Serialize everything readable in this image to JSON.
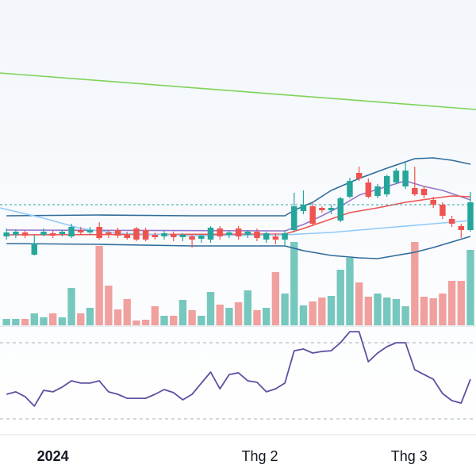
{
  "chart_data": {
    "type": "candlestick",
    "xlim": [
      -0.7,
      50.6
    ],
    "xticks": [
      {
        "value": 5,
        "label": "2024"
      },
      {
        "value": 27.3,
        "label": "Thg 2"
      },
      {
        "value": 43.4,
        "label": "Thg 3"
      }
    ],
    "ylim": [
      0,
      41
    ],
    "up_color": "#26a69a",
    "down_color": "#ef5350",
    "open": [
      11.2,
      11.4,
      11.7,
      8.9,
      11.4,
      11.6,
      11.5,
      11.2,
      12.0,
      11.7,
      12.4,
      11.7,
      12.0,
      11.4,
      12.2,
      12.0,
      11.4,
      11.2,
      11.5,
      11.1,
      11.2,
      10.9,
      10.8,
      12.2,
      11.4,
      12.2,
      11.4,
      11.8,
      10.8,
      11.2,
      10.8,
      12.0,
      14.4,
      15.0,
      14.8,
      14.5,
      13.2,
      16.2,
      19.2,
      18.0,
      16.3,
      16.5,
      18.0,
      17.5,
      17.3,
      17.2,
      15.8,
      15.2,
      13.4,
      12.5,
      12.0
    ],
    "high": [
      12.2,
      12.1,
      12.0,
      11.4,
      12.2,
      11.9,
      12.0,
      12.8,
      12.4,
      12.4,
      13.0,
      12.0,
      12.3,
      11.8,
      12.4,
      12.3,
      11.7,
      11.9,
      11.8,
      11.6,
      11.4,
      11.5,
      12.5,
      12.5,
      11.9,
      12.5,
      12.0,
      12.2,
      11.8,
      11.6,
      12.0,
      16.7,
      17.0,
      15.5,
      15.0,
      15.2,
      16.2,
      18.6,
      20.0,
      18.5,
      17.8,
      19.0,
      19.8,
      20.5,
      20.0,
      17.6,
      16.2,
      15.5,
      13.8,
      12.8,
      16.8
    ],
    "low": [
      10.8,
      11.0,
      11.0,
      8.8,
      11.2,
      11.0,
      11.2,
      11.0,
      11.4,
      11.4,
      10.8,
      11.0,
      11.0,
      10.8,
      10.6,
      10.6,
      10.8,
      10.8,
      10.6,
      10.6,
      9.8,
      10.4,
      10.4,
      10.8,
      11.0,
      10.8,
      11.0,
      10.6,
      10.4,
      10.2,
      10.0,
      11.7,
      14.0,
      12.5,
      14.2,
      14.0,
      13.0,
      16.0,
      18.2,
      16.0,
      16.0,
      16.2,
      17.8,
      17.2,
      16.3,
      16.0,
      14.8,
      13.4,
      12.4,
      11.0,
      11.8
    ],
    "close": [
      11.7,
      11.8,
      11.3,
      10.3,
      11.8,
      11.3,
      11.8,
      12.4,
      11.7,
      12.0,
      11.0,
      11.4,
      11.3,
      11.0,
      10.8,
      10.8,
      11.1,
      11.6,
      11.1,
      11.4,
      10.8,
      11.3,
      12.3,
      11.2,
      11.7,
      11.2,
      11.8,
      11.0,
      11.6,
      10.8,
      11.6,
      15.0,
      15.2,
      12.8,
      14.5,
      14.8,
      16.0,
      18.2,
      18.5,
      16.2,
      17.5,
      18.8,
      19.5,
      19.5,
      16.5,
      16.4,
      15.2,
      13.8,
      12.8,
      12.0,
      15.5
    ],
    "price_line": 15.2,
    "price_line_color": "#26a69a",
    "overlays": [
      {
        "color": "#7ed35a",
        "x": [
          -0.7,
          50.6
        ],
        "values": [
          31.8,
          27.2
        ]
      },
      {
        "color": "#2f6b9a",
        "x": [
          0,
          10,
          20,
          30,
          31,
          33,
          35,
          38,
          41,
          44,
          46,
          48,
          50
        ],
        "values": [
          13.8,
          13.9,
          13.8,
          13.8,
          14.5,
          15.5,
          17.0,
          18.5,
          19.8,
          21.0,
          21.1,
          20.8,
          20.3
        ]
      },
      {
        "color": "#2f6b9a",
        "x": [
          0,
          10,
          20,
          30,
          32,
          35,
          38,
          40,
          42,
          44,
          46,
          48,
          50
        ],
        "values": [
          10.3,
          10.2,
          10.0,
          10.0,
          9.4,
          8.8,
          8.5,
          8.4,
          8.8,
          9.2,
          9.8,
          10.5,
          11.2
        ]
      },
      {
        "color": "#9575cd",
        "x": [
          0,
          30,
          32,
          34,
          36,
          38,
          41,
          43,
          45,
          47,
          49,
          50
        ],
        "values": [
          12.0,
          11.9,
          12.7,
          13.8,
          15.0,
          16.4,
          17.5,
          18.2,
          17.5,
          17.0,
          16.2,
          15.8
        ]
      },
      {
        "color": "#ef5350",
        "x": [
          0,
          30,
          32,
          34,
          37,
          40,
          43,
          46,
          48,
          50
        ],
        "values": [
          11.4,
          11.5,
          12.2,
          13.0,
          14.2,
          14.8,
          15.5,
          16.0,
          16.3,
          16.2
        ]
      },
      {
        "color": "#90caf9",
        "x": [
          -0.7,
          4,
          8,
          12,
          20,
          30,
          35,
          40,
          45,
          48,
          50
        ],
        "values": [
          14.8,
          13.5,
          12.2,
          11.6,
          11.3,
          11.4,
          11.7,
          12.2,
          12.7,
          13.0,
          13.2
        ]
      }
    ],
    "volume": [
      80,
      80,
      80,
      150,
      100,
      150,
      100,
      470,
      150,
      220,
      1000,
      500,
      200,
      330,
      60,
      70,
      240,
      120,
      120,
      320,
      190,
      120,
      420,
      260,
      220,
      290,
      440,
      190,
      220,
      670,
      400,
      1050,
      250,
      300,
      350,
      370,
      700,
      850,
      540,
      360,
      400,
      350,
      330,
      240,
      1050,
      360,
      340,
      400,
      560,
      560,
      950
    ],
    "volume_ylim": [
      0,
      4100
    ],
    "volume_up_color": "#76c7bd",
    "volume_down_color": "#f0a09e",
    "rsi": [
      42.9,
      44.2,
      41.7,
      36.7,
      45,
      44.2,
      46.7,
      50,
      48.8,
      48.8,
      50,
      44.2,
      42.9,
      40.8,
      40.8,
      40.8,
      42.9,
      45.4,
      43.8,
      40,
      42.9,
      48.8,
      54.6,
      45.8,
      53.3,
      54.2,
      50,
      49.2,
      44.2,
      45.8,
      48.8,
      65.8,
      66.7,
      64.6,
      65.4,
      65.8,
      70,
      75.8,
      75.8,
      60,
      64.6,
      67.9,
      70,
      70,
      55.8,
      53.3,
      50.8,
      43.3,
      39.6,
      38.3,
      50.8
    ],
    "rsi_ylim": [
      20,
      80
    ],
    "rsi_levels": [
      70,
      30
    ],
    "rsi_color": "#5e4fa2"
  }
}
